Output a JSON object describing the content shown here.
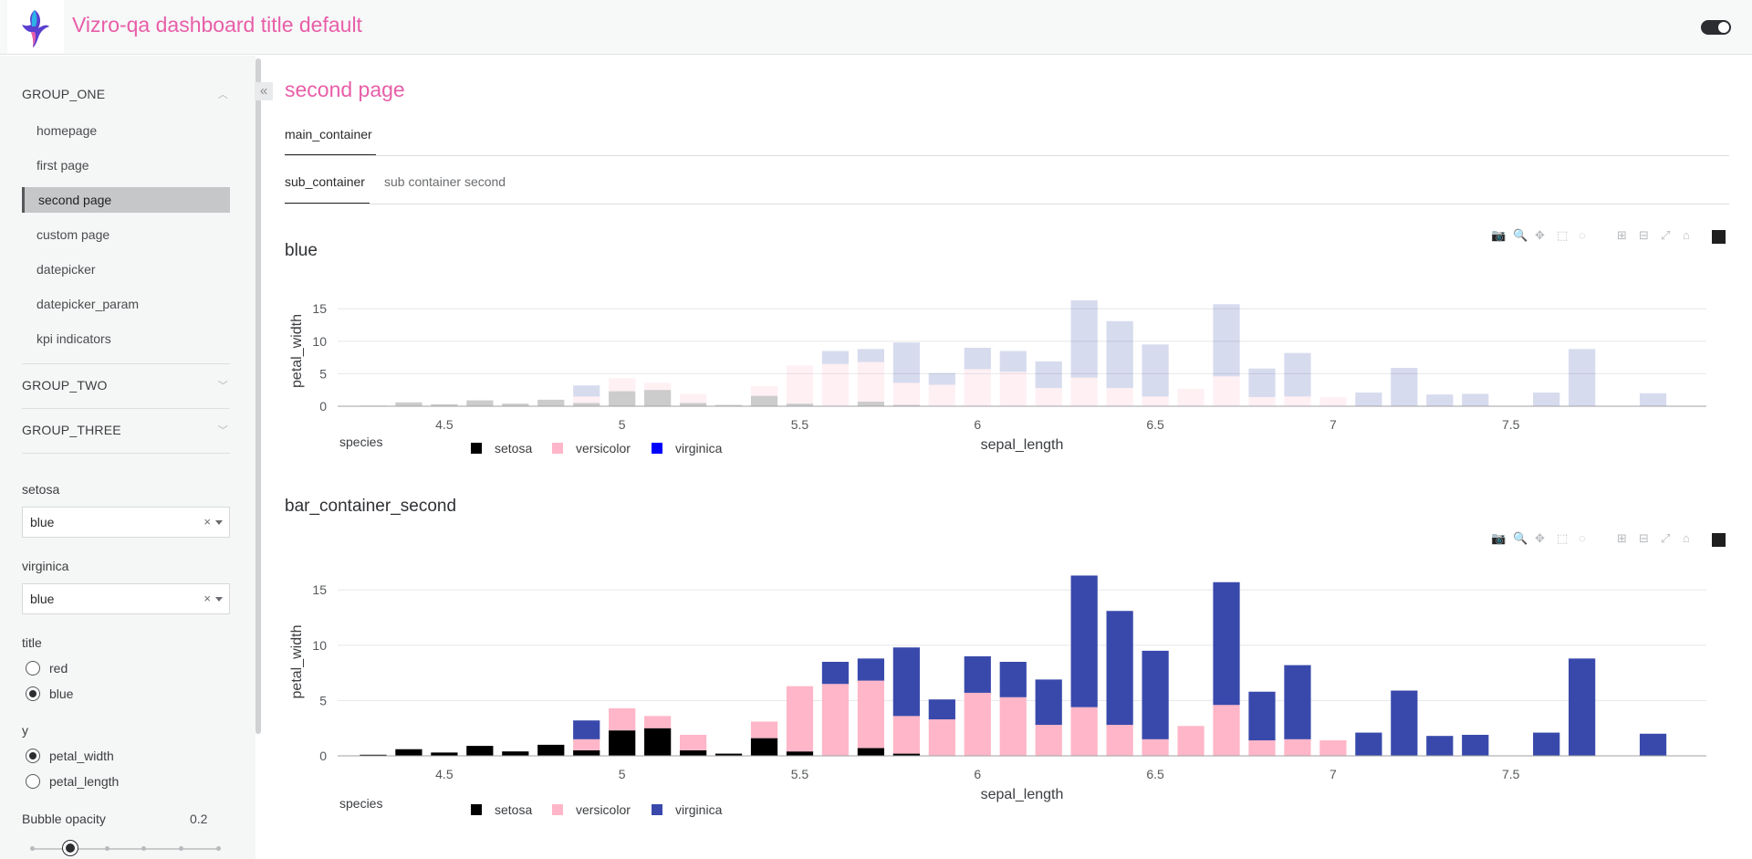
{
  "header": {
    "title": "Vizro-qa dashboard title default"
  },
  "page": {
    "title": "second page"
  },
  "tabs": {
    "outer": [
      {
        "label": "main_container"
      }
    ],
    "inner": [
      {
        "label": "sub_container"
      },
      {
        "label": "sub container second"
      }
    ]
  },
  "sidebar": {
    "groups": [
      {
        "title": "GROUP_ONE",
        "items": [
          {
            "label": "homepage"
          },
          {
            "label": "first page"
          },
          {
            "label": "second page"
          },
          {
            "label": "custom page"
          },
          {
            "label": "datepicker"
          },
          {
            "label": "datepicker_param"
          },
          {
            "label": "kpi indicators"
          }
        ]
      },
      {
        "title": "GROUP_TWO"
      },
      {
        "title": "GROUP_THREE"
      }
    ],
    "controls": {
      "setosa": {
        "label": "setosa",
        "value": "blue"
      },
      "virginica": {
        "label": "virginica",
        "value": "blue"
      },
      "title": {
        "label": "title",
        "options": [
          "red",
          "blue"
        ],
        "selected": "blue"
      },
      "y": {
        "label": "y",
        "options": [
          "petal_width",
          "petal_length"
        ],
        "selected": "petal_width"
      },
      "bubble_opacity": {
        "label": "Bubble opacity",
        "value": "0.2",
        "fraction": 0.2
      }
    }
  },
  "colors": {
    "accent": "#e85ea8",
    "setosa": "#000000",
    "versicolor": "#ffb6c8",
    "virginica": "#3949ab",
    "virginica_legend_chart1": "#0000ff"
  },
  "chart_data": [
    {
      "type": "bar",
      "title": "blue",
      "xlabel": "sepal_length",
      "ylabel": "petal_width",
      "barmode": "stack",
      "faded": true,
      "xlim": [
        4.2,
        8.05
      ],
      "ylim": [
        0,
        17
      ],
      "x_ticks": [
        4.5,
        5,
        5.5,
        6,
        6.5,
        7,
        7.5
      ],
      "y_ticks": [
        0,
        5,
        10,
        15
      ],
      "legend": {
        "title": "species",
        "placement": "bottom-left"
      },
      "x": [
        4.3,
        4.4,
        4.5,
        4.6,
        4.7,
        4.8,
        4.9,
        5.0,
        5.1,
        5.2,
        5.3,
        5.4,
        5.5,
        5.6,
        5.7,
        5.8,
        5.9,
        6.0,
        6.1,
        6.2,
        6.3,
        6.4,
        6.5,
        6.6,
        6.7,
        6.8,
        6.9,
        7.0,
        7.1,
        7.2,
        7.3,
        7.4,
        7.6,
        7.7,
        7.9
      ],
      "series": [
        {
          "name": "setosa",
          "values": [
            0.1,
            0.6,
            0.3,
            0.9,
            0.4,
            1.0,
            0.5,
            2.3,
            2.5,
            0.5,
            0.2,
            1.6,
            0.4,
            0,
            0.7,
            0.2,
            0,
            0,
            0,
            0,
            0,
            0,
            0,
            0,
            0,
            0,
            0,
            0,
            0,
            0,
            0,
            0,
            0,
            0,
            0
          ]
        },
        {
          "name": "versicolor",
          "values": [
            0,
            0,
            0,
            0,
            0,
            0,
            1.0,
            2.0,
            1.1,
            1.4,
            0,
            1.5,
            5.9,
            6.5,
            6.1,
            3.4,
            3.3,
            5.7,
            5.3,
            2.8,
            4.4,
            2.8,
            1.5,
            2.7,
            4.6,
            1.4,
            1.5,
            1.4,
            0,
            0,
            0,
            0,
            0,
            0,
            0
          ]
        },
        {
          "name": "virginica",
          "values": [
            0,
            0,
            0,
            0,
            0,
            0,
            1.7,
            0,
            0,
            0,
            0,
            0,
            0,
            2.0,
            2.0,
            6.2,
            1.8,
            3.3,
            3.2,
            4.1,
            11.9,
            10.3,
            8.0,
            0,
            11.1,
            4.4,
            6.7,
            0,
            2.1,
            5.9,
            1.8,
            1.9,
            2.1,
            8.8,
            2.0
          ]
        }
      ]
    },
    {
      "type": "bar",
      "title": "bar_container_second",
      "xlabel": "sepal_length",
      "ylabel": "petal_width",
      "barmode": "stack",
      "faded": false,
      "xlim": [
        4.2,
        8.05
      ],
      "ylim": [
        0,
        17
      ],
      "x_ticks": [
        4.5,
        5,
        5.5,
        6,
        6.5,
        7,
        7.5
      ],
      "y_ticks": [
        0,
        5,
        10,
        15
      ],
      "legend": {
        "title": "species",
        "placement": "bottom-left"
      },
      "x": [
        4.3,
        4.4,
        4.5,
        4.6,
        4.7,
        4.8,
        4.9,
        5.0,
        5.1,
        5.2,
        5.3,
        5.4,
        5.5,
        5.6,
        5.7,
        5.8,
        5.9,
        6.0,
        6.1,
        6.2,
        6.3,
        6.4,
        6.5,
        6.6,
        6.7,
        6.8,
        6.9,
        7.0,
        7.1,
        7.2,
        7.3,
        7.4,
        7.6,
        7.7,
        7.9
      ],
      "series": [
        {
          "name": "setosa",
          "values": [
            0.1,
            0.6,
            0.3,
            0.9,
            0.4,
            1.0,
            0.5,
            2.3,
            2.5,
            0.5,
            0.2,
            1.6,
            0.4,
            0,
            0.7,
            0.2,
            0,
            0,
            0,
            0,
            0,
            0,
            0,
            0,
            0,
            0,
            0,
            0,
            0,
            0,
            0,
            0,
            0,
            0,
            0
          ]
        },
        {
          "name": "versicolor",
          "values": [
            0,
            0,
            0,
            0,
            0,
            0,
            1.0,
            2.0,
            1.1,
            1.4,
            0,
            1.5,
            5.9,
            6.5,
            6.1,
            3.4,
            3.3,
            5.7,
            5.3,
            2.8,
            4.4,
            2.8,
            1.5,
            2.7,
            4.6,
            1.4,
            1.5,
            1.4,
            0,
            0,
            0,
            0,
            0,
            0,
            0
          ]
        },
        {
          "name": "virginica",
          "values": [
            0,
            0,
            0,
            0,
            0,
            0,
            1.7,
            0,
            0,
            0,
            0,
            0,
            0,
            2.0,
            2.0,
            6.2,
            1.8,
            3.3,
            3.2,
            4.1,
            11.9,
            10.3,
            8.0,
            0,
            11.1,
            4.4,
            6.7,
            0,
            2.1,
            5.9,
            1.8,
            1.9,
            2.1,
            8.8,
            2.0
          ]
        }
      ]
    }
  ]
}
